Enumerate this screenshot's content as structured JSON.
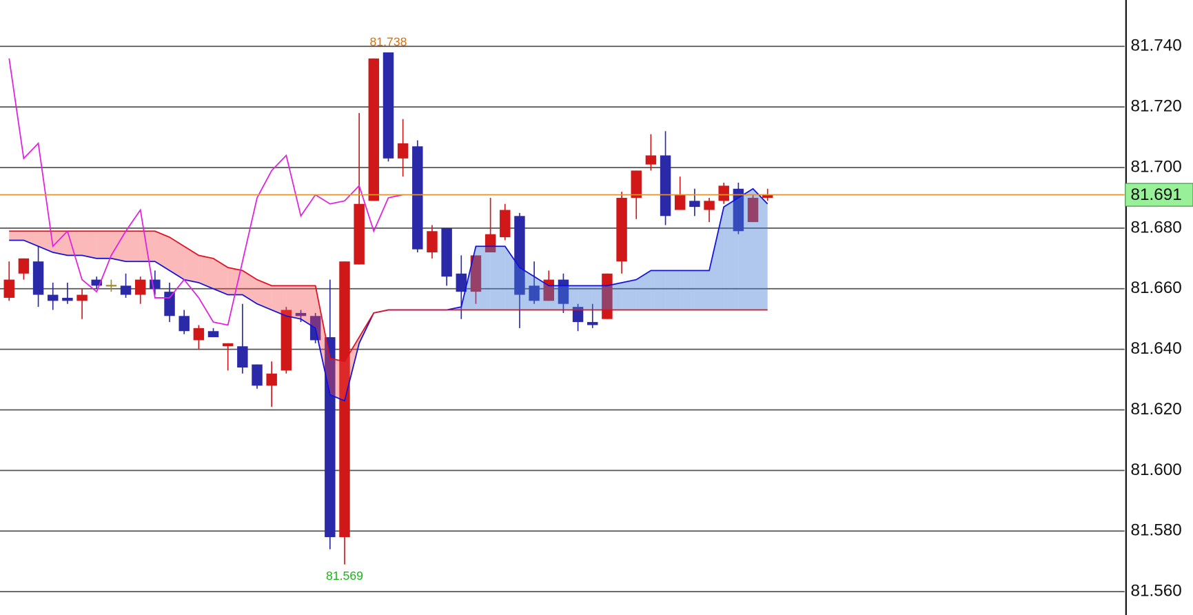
{
  "chart_data": {
    "type": "candlestick",
    "ylim": [
      81.5523,
      81.7553
    ],
    "yticks": [
      {
        "value": 81.56,
        "label": "81.560"
      },
      {
        "value": 81.58,
        "label": "81.580"
      },
      {
        "value": 81.6,
        "label": "81.600"
      },
      {
        "value": 81.62,
        "label": "81.620"
      },
      {
        "value": 81.64,
        "label": "81.640"
      },
      {
        "value": 81.66,
        "label": "81.660"
      },
      {
        "value": 81.68,
        "label": "81.680"
      },
      {
        "value": 81.7,
        "label": "81.700"
      },
      {
        "value": 81.72,
        "label": "81.720"
      },
      {
        "value": 81.74,
        "label": "81.740"
      }
    ],
    "grid": true,
    "up_color": "#d01818",
    "down_color": "#2a2aa8",
    "flat_color": "#a08a20",
    "open": [
      81.657,
      81.665,
      81.669,
      81.658,
      81.657,
      81.656,
      81.663,
      81.661,
      81.661,
      81.658,
      81.663,
      81.659,
      81.651,
      81.643,
      81.646,
      81.641,
      81.641,
      81.635,
      81.628,
      81.633,
      81.652,
      81.651,
      81.644,
      81.578,
      81.668,
      81.689,
      81.738,
      81.703,
      81.707,
      81.672,
      81.68,
      81.665,
      81.659,
      81.672,
      81.677,
      81.684,
      81.661,
      81.656,
      81.663,
      81.654,
      81.649,
      81.65,
      81.669,
      81.69,
      81.701,
      81.704,
      81.686,
      81.689,
      81.686,
      81.689,
      81.693,
      81.682,
      81.69
    ],
    "high": [
      81.669,
      81.67,
      81.674,
      81.662,
      81.662,
      81.66,
      81.664,
      81.663,
      81.665,
      81.664,
      81.666,
      81.662,
      81.653,
      81.648,
      81.647,
      81.642,
      81.655,
      81.635,
      81.636,
      81.654,
      81.653,
      81.652,
      81.663,
      81.669,
      81.718,
      81.736,
      81.738,
      81.716,
      81.709,
      81.681,
      81.68,
      81.671,
      81.671,
      81.69,
      81.688,
      81.685,
      81.669,
      81.666,
      81.665,
      81.655,
      81.655,
      81.665,
      81.692,
      81.699,
      81.711,
      81.712,
      81.697,
      81.693,
      81.69,
      81.695,
      81.695,
      81.691,
      81.693
    ],
    "low": [
      81.656,
      81.663,
      81.654,
      81.653,
      81.655,
      81.65,
      81.66,
      81.659,
      81.657,
      81.655,
      81.658,
      81.649,
      81.645,
      81.64,
      81.644,
      81.633,
      81.632,
      81.627,
      81.621,
      81.632,
      81.649,
      81.642,
      81.574,
      81.569,
      81.668,
      81.689,
      81.702,
      81.697,
      81.672,
      81.67,
      81.661,
      81.65,
      81.655,
      81.672,
      81.676,
      81.647,
      81.655,
      81.656,
      81.652,
      81.646,
      81.647,
      81.65,
      81.665,
      81.683,
      81.699,
      81.681,
      81.686,
      81.684,
      81.682,
      81.688,
      81.678,
      81.682,
      81.689
    ],
    "close": [
      81.663,
      81.67,
      81.658,
      81.656,
      81.656,
      81.658,
      81.661,
      81.661,
      81.658,
      81.663,
      81.66,
      81.651,
      81.646,
      81.647,
      81.644,
      81.642,
      81.634,
      81.628,
      81.632,
      81.653,
      81.651,
      81.643,
      81.578,
      81.669,
      81.688,
      81.736,
      81.703,
      81.708,
      81.673,
      81.679,
      81.664,
      81.659,
      81.671,
      81.678,
      81.686,
      81.658,
      81.656,
      81.663,
      81.655,
      81.649,
      81.648,
      81.665,
      81.69,
      81.699,
      81.704,
      81.684,
      81.691,
      81.687,
      81.689,
      81.694,
      81.679,
      81.69,
      81.691
    ],
    "lines": [
      {
        "color": "#1010e0",
        "values": [
          81.676,
          81.676,
          81.674,
          81.672,
          81.671,
          81.671,
          81.67,
          81.67,
          81.669,
          81.669,
          81.669,
          81.666,
          81.663,
          81.662,
          81.66,
          81.658,
          81.658,
          81.655,
          81.653,
          81.651,
          81.65,
          81.647,
          81.625,
          81.623,
          81.642,
          81.652,
          81.653,
          81.653,
          81.653,
          81.653,
          81.653,
          81.654,
          81.674,
          81.674,
          81.674,
          81.667,
          81.664,
          81.661,
          81.661,
          81.661,
          81.661,
          81.661,
          81.662,
          81.663,
          81.666,
          81.666,
          81.666,
          81.666,
          81.666,
          81.687,
          81.69,
          81.693,
          81.688
        ]
      },
      {
        "color": "#e01020",
        "values": [
          81.679,
          81.679,
          81.679,
          81.679,
          81.679,
          81.679,
          81.679,
          81.679,
          81.679,
          81.679,
          81.679,
          81.677,
          81.674,
          81.671,
          81.67,
          81.667,
          81.666,
          81.663,
          81.661,
          81.661,
          81.661,
          81.661,
          81.637,
          81.636,
          81.644,
          81.652,
          81.653,
          81.653,
          81.653,
          81.653,
          81.653,
          81.653,
          81.653,
          81.653,
          81.653,
          81.653,
          81.653,
          81.653,
          81.653,
          81.653,
          81.653,
          81.653,
          81.653,
          81.653,
          81.653,
          81.653,
          81.653,
          81.653,
          81.653,
          81.653,
          81.653,
          81.653,
          81.653
        ]
      },
      {
        "color": "#e020e0",
        "values": [
          81.736,
          81.703,
          81.708,
          81.674,
          81.679,
          81.663,
          81.659,
          81.671,
          81.679,
          81.686,
          81.657,
          81.657,
          81.663,
          81.657,
          81.649,
          81.648,
          81.669,
          81.69,
          81.699,
          81.704,
          81.684,
          81.691,
          81.688,
          81.689,
          81.694,
          81.679,
          81.69,
          81.691,
          null,
          null,
          null,
          null,
          null,
          null,
          null,
          null,
          null,
          null,
          null,
          null,
          null,
          null,
          null,
          null,
          null,
          null,
          null,
          null,
          null,
          null,
          null,
          null,
          null
        ]
      }
    ],
    "cloud_fill": [
      "rgba(70,125,215,0.42)",
      "rgba(245,70,70,0.38)"
    ],
    "max_label": "81.738",
    "max_label_color": "#d8700c",
    "min_label": "81.569",
    "min_label_color": "#14b814",
    "last_price": {
      "value": 81.691,
      "label": "81.691"
    },
    "last_price_color": "#e8902a",
    "last_price_box": "#98f098"
  }
}
